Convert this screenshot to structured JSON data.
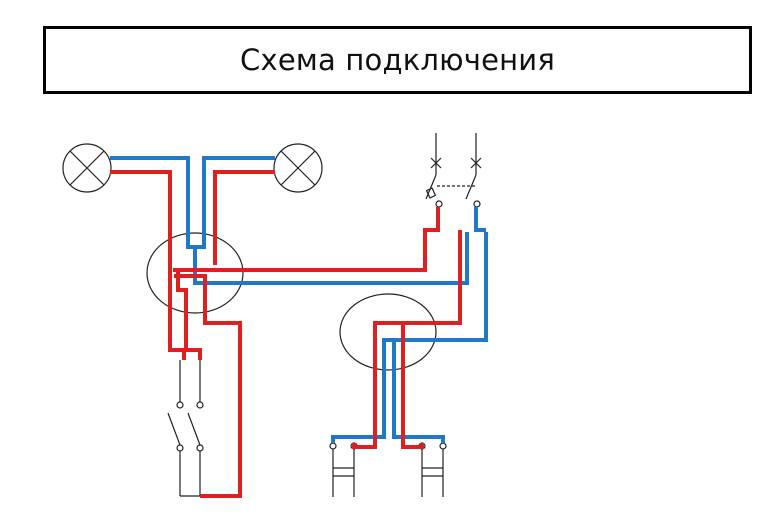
{
  "title": "Схема подключения",
  "colors": {
    "phase_wire": "#e02020",
    "neutral_wire": "#1f78c8",
    "outline": "#222222"
  },
  "components": {
    "lamps": [
      "lamp-left",
      "lamp-right"
    ],
    "junction_boxes": [
      "junction-box-left",
      "junction-box-right"
    ],
    "switch": "double-switch",
    "breaker": "double-breaker",
    "sockets": [
      "socket-left",
      "socket-right"
    ]
  }
}
